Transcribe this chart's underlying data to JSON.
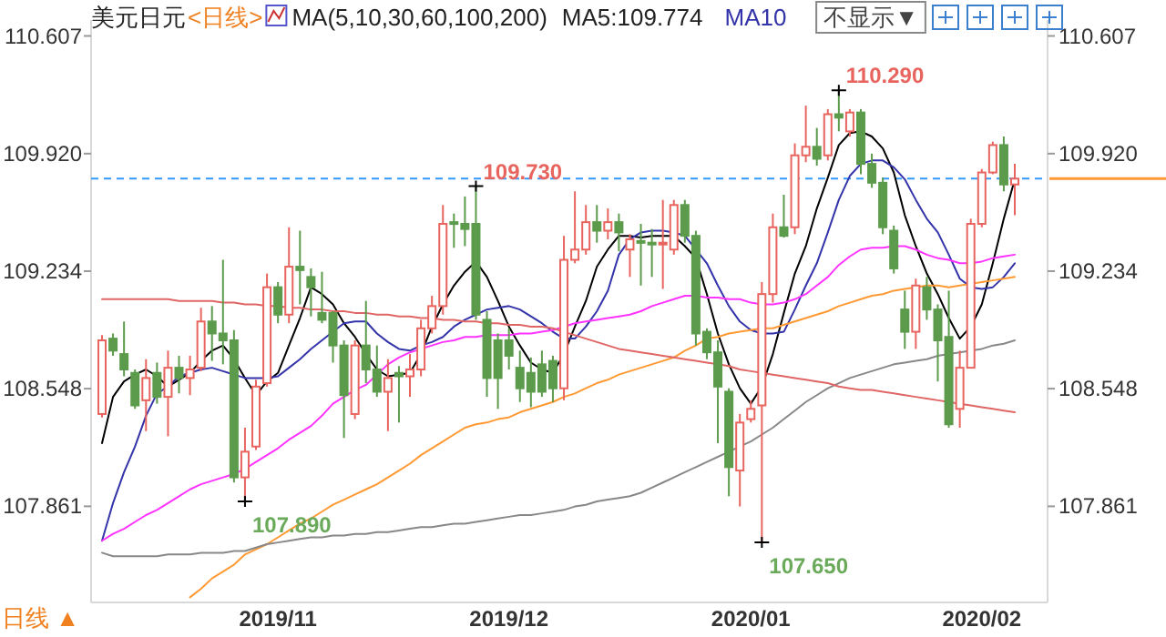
{
  "chart_data": {
    "type": "candlestick",
    "title": "美元日元",
    "annotations": [
      "<日线>",
      "MA(5,10,30,60,100,200)",
      "MA5:109.774",
      "MA10",
      "不显示▼",
      "日线 ▲",
      "109.730",
      "110.290",
      "107.890",
      "107.650"
    ],
    "categories": [
      null,
      null,
      null,
      null,
      null,
      null,
      null,
      null,
      null,
      null,
      null,
      null,
      null,
      null,
      null,
      null,
      "2019/11",
      null,
      null,
      null,
      null,
      null,
      null,
      null,
      null,
      null,
      null,
      null,
      null,
      null,
      null,
      null,
      null,
      null,
      null,
      null,
      null,
      "2019/12",
      null,
      null,
      null,
      null,
      null,
      null,
      null,
      null,
      null,
      null,
      null,
      null,
      null,
      null,
      null,
      null,
      null,
      null,
      null,
      null,
      null,
      "2020/01",
      null,
      null,
      null,
      null,
      null,
      null,
      null,
      null,
      null,
      null,
      null,
      null,
      null,
      null,
      null,
      null,
      null,
      null,
      null,
      null,
      "2020/02",
      null,
      null,
      null
    ],
    "ohlc": [
      [
        108.4,
        108.86,
        108.38,
        108.83
      ],
      [
        108.84,
        108.87,
        108.74,
        108.77
      ],
      [
        108.75,
        108.94,
        108.62,
        108.66
      ],
      [
        108.64,
        108.66,
        108.43,
        108.45
      ],
      [
        108.48,
        108.72,
        108.3,
        108.61
      ],
      [
        108.64,
        108.7,
        108.46,
        108.5
      ],
      [
        108.5,
        108.77,
        108.27,
        108.67
      ],
      [
        108.67,
        108.74,
        108.52,
        108.61
      ],
      [
        108.61,
        108.74,
        108.51,
        108.66
      ],
      [
        108.67,
        109.02,
        108.65,
        108.94
      ],
      [
        108.94,
        109.03,
        108.71,
        108.87
      ],
      [
        108.87,
        109.3,
        108.69,
        108.83
      ],
      [
        108.83,
        108.89,
        108.0,
        108.03
      ],
      [
        108.03,
        108.32,
        107.89,
        108.18
      ],
      [
        108.21,
        108.6,
        108.19,
        108.56
      ],
      [
        108.58,
        109.22,
        108.56,
        109.14
      ],
      [
        109.14,
        109.17,
        108.93,
        108.98
      ],
      [
        108.98,
        109.49,
        108.93,
        109.26
      ],
      [
        109.26,
        109.47,
        109.04,
        109.24
      ],
      [
        109.2,
        109.25,
        108.97,
        109.14
      ],
      [
        108.99,
        109.23,
        108.93,
        108.95
      ],
      [
        108.99,
        109.0,
        108.7,
        108.8
      ],
      [
        108.8,
        108.83,
        108.26,
        108.51
      ],
      [
        108.4,
        108.83,
        108.37,
        108.8
      ],
      [
        108.8,
        109.06,
        108.58,
        108.66
      ],
      [
        108.66,
        108.8,
        108.5,
        108.53
      ],
      [
        108.53,
        108.72,
        108.3,
        108.61
      ],
      [
        108.64,
        108.68,
        108.35,
        108.62
      ],
      [
        108.62,
        108.75,
        108.5,
        108.66
      ],
      [
        108.66,
        108.95,
        108.62,
        108.9
      ],
      [
        108.9,
        109.09,
        108.87,
        109.03
      ],
      [
        109.03,
        109.62,
        108.98,
        109.51
      ],
      [
        109.52,
        109.57,
        109.37,
        109.51
      ],
      [
        109.51,
        109.67,
        109.38,
        109.48
      ],
      [
        109.51,
        109.73,
        108.95,
        108.98
      ],
      [
        108.95,
        109.0,
        108.5,
        108.61
      ],
      [
        108.83,
        108.87,
        108.43,
        108.61
      ],
      [
        108.83,
        108.9,
        108.66,
        108.74
      ],
      [
        108.67,
        108.77,
        108.47,
        108.55
      ],
      [
        108.64,
        108.73,
        108.44,
        108.53
      ],
      [
        108.69,
        108.77,
        108.5,
        108.53
      ],
      [
        108.71,
        108.74,
        108.47,
        108.55
      ],
      [
        108.55,
        109.44,
        108.48,
        109.3
      ],
      [
        109.3,
        109.7,
        109.28,
        109.36
      ],
      [
        109.36,
        109.62,
        109.33,
        109.52
      ],
      [
        109.52,
        109.62,
        109.4,
        109.47
      ],
      [
        109.47,
        109.6,
        109.42,
        109.52
      ],
      [
        109.52,
        109.57,
        109.35,
        109.46
      ],
      [
        109.36,
        109.45,
        109.2,
        109.42
      ],
      [
        109.41,
        109.51,
        109.15,
        109.4
      ],
      [
        109.4,
        109.48,
        109.2,
        109.39
      ],
      [
        109.39,
        109.65,
        109.13,
        109.4
      ],
      [
        109.36,
        109.65,
        109.33,
        109.62
      ],
      [
        109.62,
        109.65,
        109.4,
        109.44
      ],
      [
        109.44,
        109.47,
        108.8,
        108.87
      ],
      [
        108.88,
        108.9,
        108.72,
        108.76
      ],
      [
        108.76,
        108.83,
        108.23,
        108.56
      ],
      [
        108.53,
        108.55,
        107.92,
        108.09
      ],
      [
        108.07,
        108.4,
        107.86,
        108.35
      ],
      [
        108.37,
        108.48,
        108.35,
        108.43
      ],
      [
        108.45,
        109.17,
        107.65,
        109.1
      ],
      [
        109.1,
        109.57,
        109.05,
        109.49
      ],
      [
        109.49,
        109.68,
        109.43,
        109.44
      ],
      [
        109.49,
        109.98,
        109.45,
        109.91
      ],
      [
        109.91,
        110.2,
        109.87,
        109.96
      ],
      [
        109.96,
        110.07,
        109.85,
        109.89
      ],
      [
        109.91,
        110.18,
        109.88,
        110.15
      ],
      [
        110.15,
        110.29,
        110.05,
        110.13
      ],
      [
        110.05,
        110.18,
        110.02,
        110.16
      ],
      [
        110.16,
        110.18,
        109.8,
        109.86
      ],
      [
        109.86,
        109.92,
        109.72,
        109.75
      ],
      [
        109.75,
        109.78,
        109.45,
        109.49
      ],
      [
        109.47,
        109.5,
        109.22,
        109.25
      ],
      [
        109.01,
        109.12,
        108.78,
        108.88
      ],
      [
        108.88,
        109.19,
        108.78,
        109.15
      ],
      [
        109.14,
        109.2,
        108.95,
        109.01
      ],
      [
        109.01,
        109.04,
        108.59,
        108.83
      ],
      [
        108.85,
        109.12,
        108.32,
        108.34
      ],
      [
        108.43,
        108.77,
        108.32,
        108.67
      ],
      [
        108.67,
        109.54,
        108.67,
        109.51
      ],
      [
        109.51,
        109.83,
        109.49,
        109.81
      ],
      [
        109.81,
        109.99,
        109.8,
        109.97
      ],
      [
        109.97,
        110.02,
        109.7,
        109.74
      ],
      [
        109.74,
        109.86,
        109.56,
        109.774
      ]
    ],
    "colors": [
      "#e8655f",
      "#5b9b4b",
      "#5b9b4b",
      "#5b9b4b",
      "#e8655f",
      "#5b9b4b",
      "#e8655f",
      "#5b9b4b",
      "#e8655f",
      "#e8655f",
      "#5b9b4b",
      "#5b9b4b",
      "#5b9b4b",
      "#e8655f",
      "#e8655f",
      "#e8655f",
      "#5b9b4b",
      "#e8655f",
      "#5b9b4b",
      "#5b9b4b",
      "#5b9b4b",
      "#5b9b4b",
      "#5b9b4b",
      "#e8655f",
      "#5b9b4b",
      "#5b9b4b",
      "#e8655f",
      "#5b9b4b",
      "#e8655f",
      "#e8655f",
      "#e8655f",
      "#e8655f",
      "#5b9b4b",
      "#5b9b4b",
      "#5b9b4b",
      "#5b9b4b",
      "#5b9b4b",
      "#5b9b4b",
      "#5b9b4b",
      "#5b9b4b",
      "#5b9b4b",
      "#5b9b4b",
      "#e8655f",
      "#e8655f",
      "#e8655f",
      "#5b9b4b",
      "#e8655f",
      "#5b9b4b",
      "#e8655f",
      "#5b9b4b",
      "#5b9b4b",
      "#e8655f",
      "#e8655f",
      "#5b9b4b",
      "#5b9b4b",
      "#5b9b4b",
      "#5b9b4b",
      "#5b9b4b",
      "#e8655f",
      "#e8655f",
      "#e8655f",
      "#e8655f",
      "#5b9b4b",
      "#e8655f",
      "#e8655f",
      "#5b9b4b",
      "#e8655f",
      "#5b9b4b",
      "#e8655f",
      "#5b9b4b",
      "#5b9b4b",
      "#5b9b4b",
      "#5b9b4b",
      "#5b9b4b",
      "#e8655f",
      "#5b9b4b",
      "#5b9b4b",
      "#5b9b4b",
      "#e8655f",
      "#e8655f",
      "#e8655f",
      "#e8655f",
      "#5b9b4b",
      "#e8655f"
    ],
    "series": [
      {
        "type": "line",
        "color": "#000000",
        "values": [
          108.23,
          108.5,
          108.59,
          108.63,
          108.66,
          108.62,
          108.56,
          108.6,
          108.64,
          108.71,
          108.77,
          108.8,
          108.72,
          108.61,
          108.51,
          108.59,
          108.64,
          108.8,
          108.96,
          109.14,
          109.1,
          109.04,
          108.93,
          108.85,
          108.75,
          108.66,
          108.62,
          108.63,
          108.64,
          108.75,
          108.91,
          109.04,
          109.15,
          109.23,
          109.29,
          109.2,
          109.06,
          108.91,
          108.8,
          108.7,
          108.66,
          108.64,
          108.75,
          108.91,
          109.06,
          109.26,
          109.36,
          109.44,
          109.44,
          109.43,
          109.44,
          109.44,
          109.44,
          109.38,
          109.31,
          109.1,
          108.87,
          108.69,
          108.55,
          108.46,
          108.56,
          108.75,
          108.99,
          109.22,
          109.38,
          109.6,
          109.78,
          109.97,
          110.04,
          110.05,
          110.02,
          109.95,
          109.81,
          109.56,
          109.38,
          109.22,
          109.1,
          108.96,
          108.84,
          108.91,
          109.04,
          109.28,
          109.54,
          109.77
        ]
      },
      {
        "type": "line",
        "color": "#3333aa",
        "values": [
          107.66,
          107.88,
          108.06,
          108.21,
          108.39,
          108.52,
          108.56,
          108.62,
          108.64,
          108.66,
          108.67,
          108.65,
          108.63,
          108.61,
          108.61,
          108.61,
          108.62,
          108.67,
          108.72,
          108.78,
          108.83,
          108.88,
          108.93,
          108.94,
          108.94,
          108.87,
          108.82,
          108.78,
          108.77,
          108.8,
          108.82,
          108.85,
          108.91,
          108.95,
          108.98,
          109.01,
          109.02,
          109.03,
          109.01,
          108.97,
          108.93,
          108.88,
          108.84,
          108.84,
          108.91,
          109.0,
          109.12,
          109.33,
          109.42,
          109.46,
          109.47,
          109.47,
          109.46,
          109.44,
          109.36,
          109.28,
          109.15,
          109.03,
          108.94,
          108.89,
          108.87,
          108.87,
          108.88,
          109.01,
          109.15,
          109.28,
          109.46,
          109.65,
          109.79,
          109.86,
          109.88,
          109.88,
          109.84,
          109.77,
          109.65,
          109.54,
          109.46,
          109.33,
          109.19,
          109.14,
          109.13,
          109.14,
          109.2,
          109.28
        ]
      },
      {
        "type": "line",
        "color": "#ff33ff",
        "values": [
          107.66,
          107.7,
          107.73,
          107.77,
          107.81,
          107.84,
          107.88,
          107.92,
          107.96,
          107.99,
          108.01,
          108.03,
          108.05,
          108.08,
          108.12,
          108.16,
          108.2,
          108.25,
          108.29,
          108.33,
          108.39,
          108.46,
          108.5,
          108.54,
          108.57,
          108.63,
          108.69,
          108.73,
          108.76,
          108.78,
          108.8,
          108.82,
          108.83,
          108.85,
          108.85,
          108.86,
          108.86,
          108.86,
          108.87,
          108.87,
          108.88,
          108.89,
          108.91,
          108.93,
          108.94,
          108.95,
          108.96,
          108.97,
          108.98,
          109.0,
          109.03,
          109.05,
          109.07,
          109.09,
          109.09,
          109.08,
          109.08,
          109.07,
          109.07,
          109.05,
          109.04,
          109.04,
          109.05,
          109.07,
          109.1,
          109.15,
          109.2,
          109.27,
          109.32,
          109.36,
          109.37,
          109.37,
          109.38,
          109.38,
          109.36,
          109.33,
          109.31,
          109.3,
          109.28,
          109.28,
          109.29,
          109.31,
          109.32,
          109.33
        ]
      },
      {
        "type": "line",
        "color": "#ff9933",
        "values": [
          null,
          null,
          null,
          null,
          null,
          null,
          null,
          null,
          107.33,
          107.38,
          107.44,
          107.48,
          107.52,
          107.58,
          107.61,
          107.64,
          107.68,
          107.72,
          107.76,
          107.79,
          107.83,
          107.87,
          107.9,
          107.93,
          107.96,
          107.99,
          108.03,
          108.07,
          108.11,
          108.16,
          108.2,
          108.24,
          108.28,
          108.32,
          108.34,
          108.35,
          108.37,
          108.38,
          108.41,
          108.43,
          108.45,
          108.47,
          108.5,
          108.52,
          108.55,
          108.58,
          108.6,
          108.63,
          108.65,
          108.67,
          108.69,
          108.71,
          108.73,
          108.77,
          108.8,
          108.84,
          108.85,
          108.87,
          108.88,
          108.89,
          108.9,
          108.9,
          108.92,
          108.94,
          108.96,
          108.98,
          109.0,
          109.03,
          109.05,
          109.07,
          109.09,
          109.1,
          109.12,
          109.13,
          109.14,
          109.15,
          109.15,
          109.14,
          109.15,
          109.16,
          109.17,
          109.18,
          109.19,
          109.2
        ]
      },
      {
        "type": "line",
        "color": "#888888",
        "values": [
          107.59,
          107.57,
          107.57,
          107.57,
          107.57,
          107.57,
          107.58,
          107.58,
          107.58,
          107.59,
          107.59,
          107.59,
          107.6,
          107.6,
          107.62,
          107.64,
          107.65,
          107.66,
          107.67,
          107.68,
          107.68,
          107.69,
          107.69,
          107.7,
          107.7,
          107.71,
          107.71,
          107.72,
          107.73,
          107.74,
          107.74,
          107.75,
          107.76,
          107.76,
          107.77,
          107.78,
          107.79,
          107.8,
          107.81,
          107.81,
          107.82,
          107.83,
          107.84,
          107.86,
          107.87,
          107.89,
          107.9,
          107.91,
          107.92,
          107.94,
          107.97,
          108.0,
          108.03,
          108.06,
          108.09,
          108.12,
          108.15,
          108.18,
          108.21,
          108.24,
          108.28,
          108.32,
          108.37,
          108.42,
          108.47,
          108.51,
          108.55,
          108.58,
          108.61,
          108.63,
          108.65,
          108.67,
          108.69,
          108.7,
          108.71,
          108.72,
          108.74,
          108.75,
          108.76,
          108.77,
          108.78,
          108.8,
          108.81,
          108.83
        ]
      },
      {
        "type": "line",
        "color": "#e06666",
        "values": [
          109.07,
          109.07,
          109.07,
          109.07,
          109.07,
          109.07,
          109.07,
          109.06,
          109.06,
          109.06,
          109.06,
          109.05,
          109.05,
          109.04,
          109.04,
          109.03,
          109.03,
          109.02,
          109.02,
          109.01,
          109.01,
          109.0,
          109.0,
          108.99,
          108.99,
          108.98,
          108.98,
          108.97,
          108.97,
          108.96,
          108.96,
          108.95,
          108.95,
          108.94,
          108.94,
          108.93,
          108.93,
          108.92,
          108.92,
          108.91,
          108.91,
          108.9,
          108.88,
          108.86,
          108.84,
          108.82,
          108.8,
          108.78,
          108.77,
          108.76,
          108.75,
          108.74,
          108.73,
          108.72,
          108.71,
          108.7,
          108.69,
          108.68,
          108.66,
          108.65,
          108.64,
          108.63,
          108.62,
          108.61,
          108.6,
          108.59,
          108.58,
          108.56,
          108.55,
          108.54,
          108.54,
          108.53,
          108.52,
          108.51,
          108.5,
          108.49,
          108.48,
          108.47,
          108.46,
          108.45,
          108.44,
          108.43,
          108.42,
          108.41
        ]
      }
    ],
    "ylim": [
      107.3,
      110.7
    ],
    "yticks": [
      107.861,
      108.548,
      109.234,
      {
        "value": 109.92,
        "label": "109.920"
      },
      110.607
    ],
    "y2lim": [
      107.3,
      110.7
    ],
    "y2ticks": [
      107.861,
      108.548,
      109.234,
      {
        "value": 109.92,
        "label": "109.920"
      },
      110.607
    ],
    "ref_lines": [
      {
        "axis": "y",
        "value": 109.774,
        "color": "#3399ff",
        "line_style": "dashed"
      }
    ]
  }
}
